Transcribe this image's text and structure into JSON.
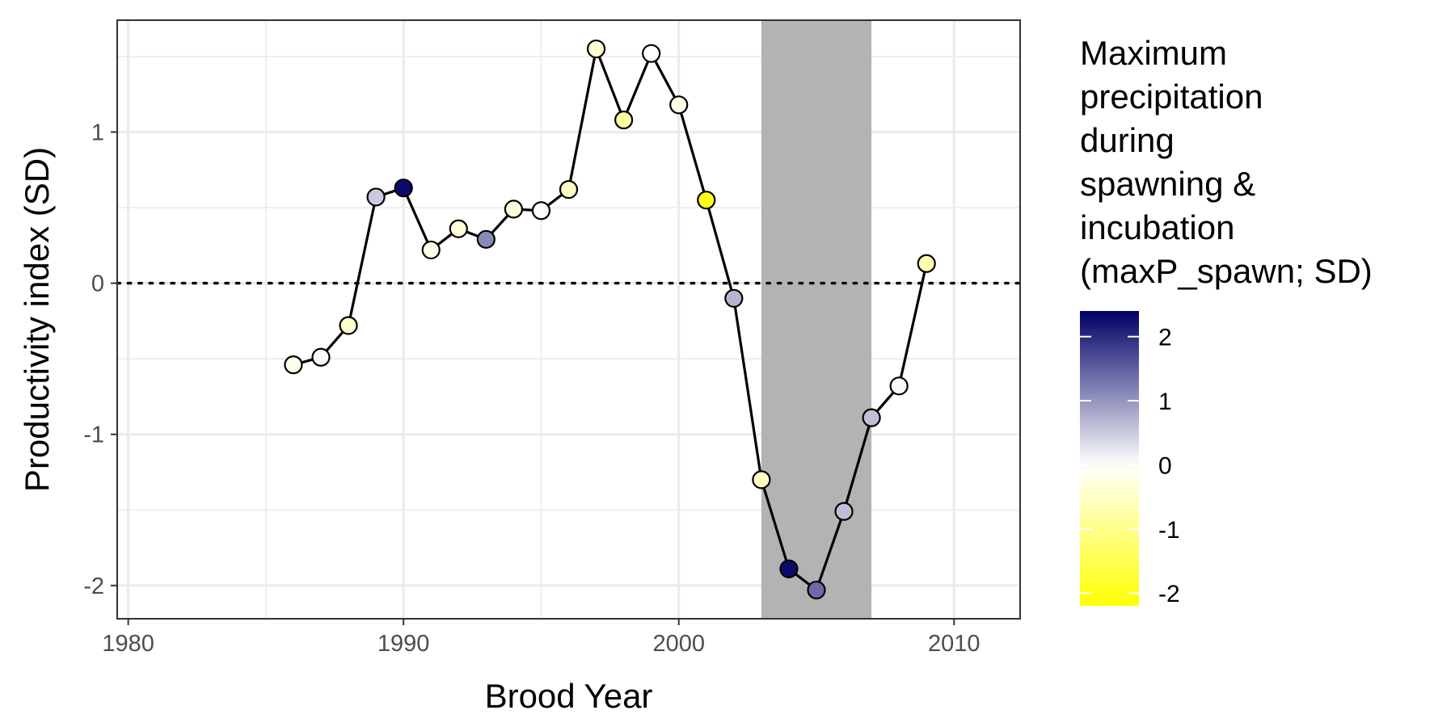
{
  "chart_data": {
    "type": "scatter",
    "xlabel": "Brood Year",
    "ylabel": "Productivity index (SD)",
    "xlim": [
      1979.6,
      2012.4
    ],
    "ylim": [
      -2.22,
      1.74
    ],
    "xticks": [
      1980,
      1990,
      2000,
      2010
    ],
    "xtick_labels": [
      "1980",
      "1990",
      "2000",
      "2010"
    ],
    "yticks": [
      -2,
      -1,
      0,
      1
    ],
    "ytick_labels": [
      "-2",
      "-1",
      "0",
      "1"
    ],
    "grid": true,
    "reference_line": {
      "y": 0,
      "style": "dotted"
    },
    "shaded_region": {
      "x": [
        2003,
        2007
      ],
      "color": "#b3b3b3"
    },
    "series": [
      {
        "x": [
          1986,
          1987,
          1988,
          1989,
          1990,
          1991,
          1992,
          1993,
          1994,
          1995,
          1996,
          1997,
          1998,
          1999,
          2000,
          2001,
          2002,
          2003,
          2004,
          2005,
          2006,
          2007,
          2008,
          2009
        ],
        "y": [
          -0.54,
          -0.49,
          -0.28,
          0.57,
          0.63,
          0.22,
          0.36,
          0.29,
          0.49,
          0.48,
          0.62,
          1.55,
          1.08,
          1.52,
          1.18,
          0.55,
          -0.1,
          -1.3,
          -1.89,
          -2.03,
          -1.51,
          -0.89,
          -0.68,
          0.13
        ],
        "color_values": [
          -0.2,
          0.05,
          -0.4,
          0.5,
          2.3,
          -0.2,
          -0.3,
          1.1,
          -0.3,
          0.05,
          -0.5,
          -0.4,
          -0.8,
          0.0,
          -0.2,
          -2.0,
          0.7,
          -0.5,
          2.3,
          1.4,
          0.6,
          0.6,
          0.05,
          -0.7
        ]
      }
    ],
    "legend": {
      "title_lines": [
        "Maximum",
        "precipitation",
        "during",
        "spawning &",
        "incubation",
        "(maxP_spawn; SD)"
      ],
      "placement": "right",
      "colorbar_range": [
        -2.2,
        2.4
      ],
      "colorbar_ticks": [
        2,
        1,
        0,
        -1,
        -2
      ],
      "colorbar_tick_labels": [
        "2",
        "1",
        "0",
        "-1",
        "-2"
      ],
      "colors": {
        "high": "#000066",
        "mid": "#ffffff",
        "low": "#ffff00"
      }
    }
  }
}
